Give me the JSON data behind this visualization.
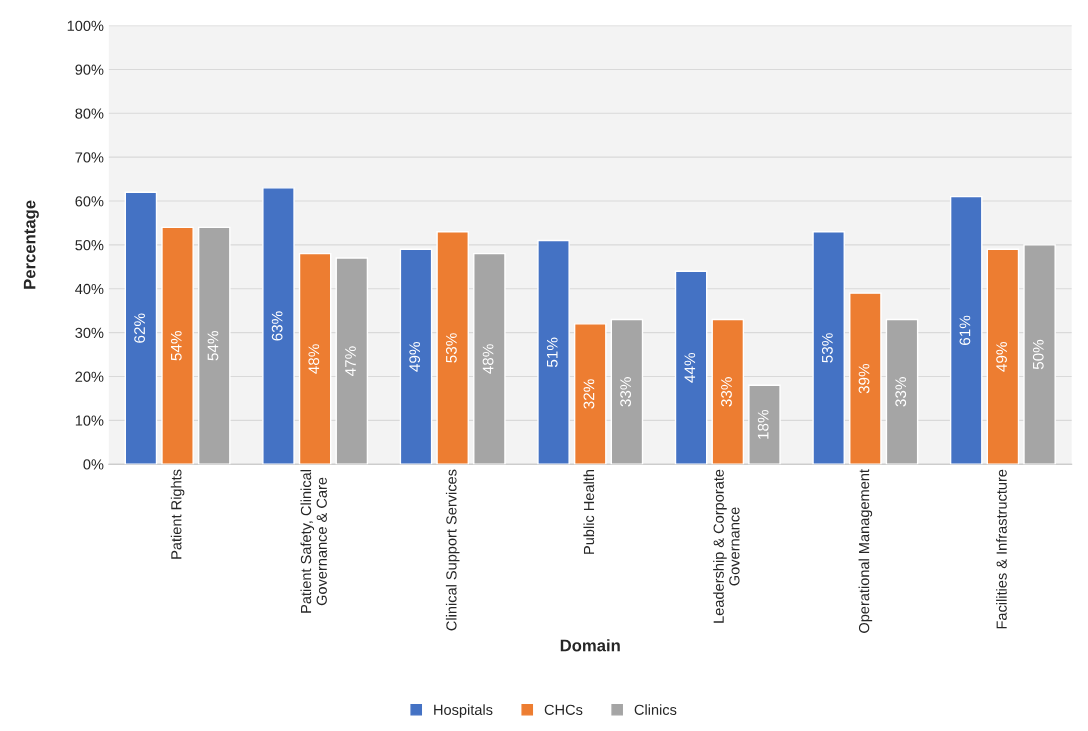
{
  "chart_data": {
    "type": "bar",
    "xlabel": "Domain",
    "ylabel": "Percentage",
    "categories": [
      "Patient Rights",
      "Patient Safety, Clinical\nGovernance & Care",
      "Clinical Support Services",
      "Public Health",
      "Leadership & Corporate\nGovernance",
      "Operational Management",
      "Facilities & Infrastructure"
    ],
    "series": [
      {
        "name": "Hospitals",
        "color": "#4472c4",
        "values": [
          62,
          63,
          49,
          51,
          44,
          53,
          61
        ],
        "value_labels": [
          "62%",
          "63%",
          "49%",
          "51%",
          "44%",
          "53%",
          "61%"
        ]
      },
      {
        "name": "CHCs",
        "color": "#ed7d31",
        "values": [
          54,
          48,
          53,
          32,
          33,
          39,
          49
        ],
        "value_labels": [
          "54%",
          "48%",
          "53%",
          "32%",
          "33%",
          "39%",
          "49%"
        ]
      },
      {
        "name": "Clinics",
        "color": "#a5a5a5",
        "values": [
          54,
          47,
          48,
          33,
          18,
          33,
          50
        ],
        "value_labels": [
          "54%",
          "47%",
          "48%",
          "33%",
          "18%",
          "33%",
          "50%"
        ]
      }
    ],
    "ylim": [
      0,
      100
    ],
    "yticks": [
      {
        "value": 0,
        "label": "0%"
      },
      {
        "value": 10,
        "label": "10%"
      },
      {
        "value": 20,
        "label": "20%"
      },
      {
        "value": 30,
        "label": "30%"
      },
      {
        "value": 40,
        "label": "40%"
      },
      {
        "value": 50,
        "label": "50%"
      },
      {
        "value": 60,
        "label": "60%"
      },
      {
        "value": 70,
        "label": "70%"
      },
      {
        "value": 80,
        "label": "80%"
      },
      {
        "value": 90,
        "label": "90%"
      },
      {
        "value": 100,
        "label": "100%"
      }
    ],
    "grid": "y",
    "legend": "bottom"
  }
}
